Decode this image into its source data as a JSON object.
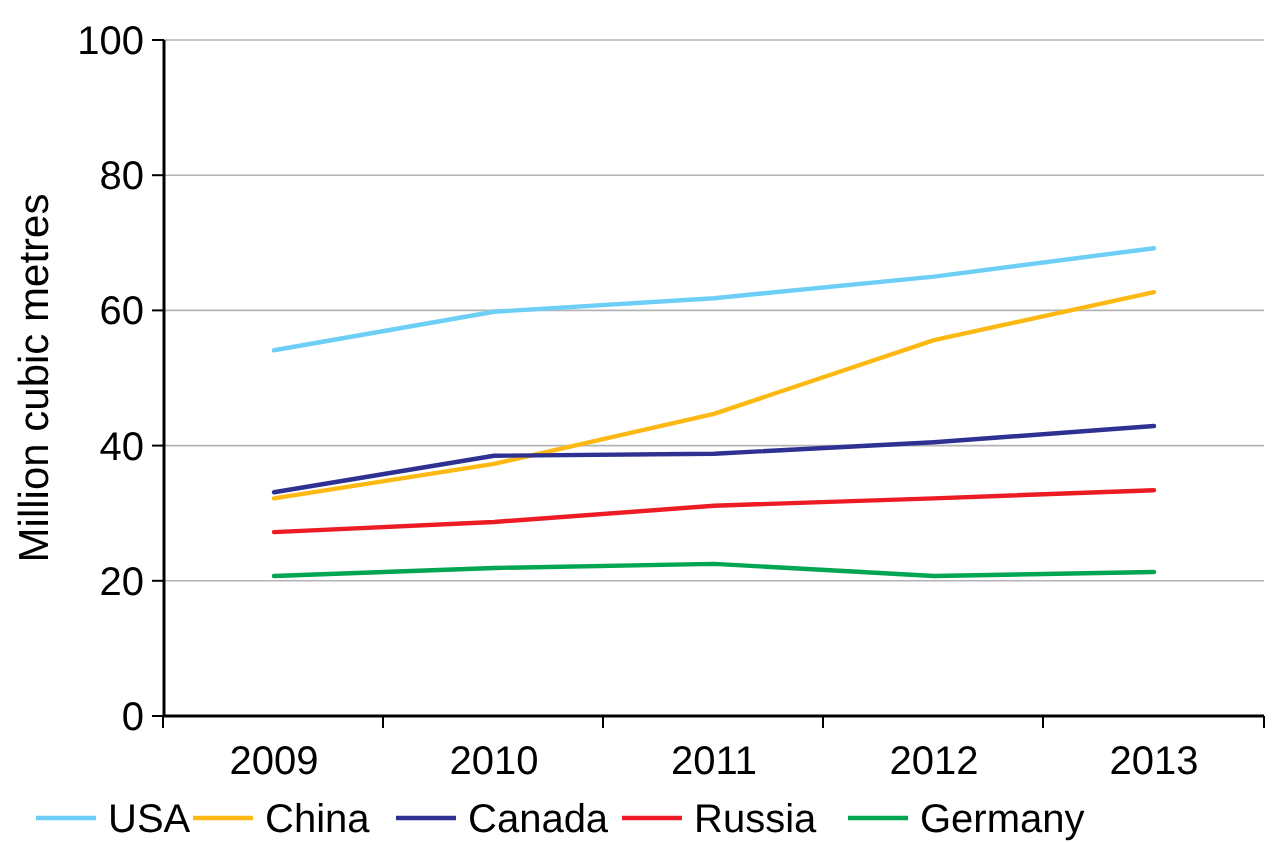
{
  "chart_data": {
    "type": "line",
    "ylabel": "Million cubic metres",
    "categories": [
      "2009",
      "2010",
      "2011",
      "2012",
      "2013"
    ],
    "series": [
      {
        "name": "USA",
        "color": "#6dcff6",
        "values": [
          54.1,
          59.8,
          61.8,
          65,
          69.2
        ]
      },
      {
        "name": "China",
        "color": "#fdb913",
        "values": [
          32.2,
          37.3,
          44.7,
          55.6,
          62.7
        ]
      },
      {
        "name": "Canada",
        "color": "#2e3192",
        "values": [
          33.1,
          38.5,
          38.8,
          40.5,
          42.9
        ]
      },
      {
        "name": "Russia",
        "color": "#ed1c24",
        "values": [
          27.2,
          28.7,
          31.1,
          32.2,
          33.4
        ]
      },
      {
        "name": "Germany",
        "color": "#00a651",
        "values": [
          20.7,
          21.9,
          22.5,
          20.7,
          21.3
        ]
      }
    ],
    "ylim": [
      0,
      100
    ],
    "yticks": [
      0,
      20,
      40,
      60,
      80,
      100
    ],
    "grid": "y",
    "legend": "bottom",
    "marker": "none",
    "line_style": "solid"
  }
}
